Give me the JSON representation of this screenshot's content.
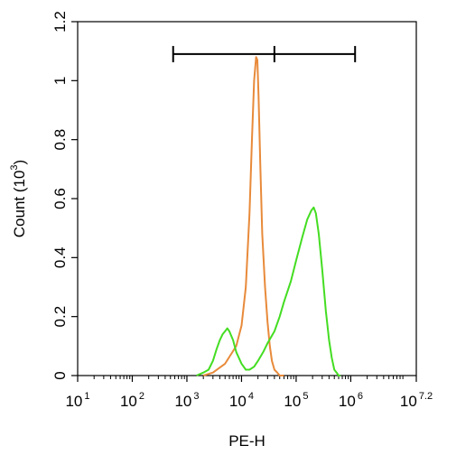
{
  "chart_data": {
    "type": "line",
    "title": "",
    "xlabel": "PE-H",
    "ylabel": "Count",
    "ylabel_unit_base": "10",
    "ylabel_unit_exp": "3",
    "x_scale": "log",
    "xlim": [
      10,
      15848931.92
    ],
    "ylim": [
      0,
      1.2
    ],
    "x_tick_labels": [
      {
        "base": "10",
        "exp": "1"
      },
      {
        "base": "10",
        "exp": "2"
      },
      {
        "base": "10",
        "exp": "3"
      },
      {
        "base": "10",
        "exp": "4"
      },
      {
        "base": "10",
        "exp": "5"
      },
      {
        "base": "10",
        "exp": "6"
      },
      {
        "base": "10",
        "exp": "7.2"
      }
    ],
    "x_tick_values": [
      10,
      100,
      1000,
      10000,
      100000,
      1000000,
      15848931.92
    ],
    "y_ticks": [
      "0",
      "0.2",
      "0.4",
      "0.6",
      "0.8",
      "1",
      "1.2"
    ],
    "y_tick_values": [
      0,
      0.2,
      0.4,
      0.6,
      0.8,
      1.0,
      1.2
    ],
    "gate": {
      "y": 1.09,
      "x_start": 560,
      "x_mid": 40000,
      "x_end": 1200000
    },
    "series": [
      {
        "color": "#e88a3a",
        "x": [
          2000,
          3000,
          5000,
          8000,
          10000,
          12000,
          14000,
          15500,
          17000,
          18500,
          19500,
          20500,
          22000,
          24000,
          27000,
          30000,
          33000,
          36000,
          40000,
          45000,
          50000,
          60000
        ],
        "y": [
          0,
          0.01,
          0.04,
          0.1,
          0.17,
          0.3,
          0.55,
          0.8,
          1.0,
          1.08,
          1.07,
          0.95,
          0.72,
          0.48,
          0.3,
          0.18,
          0.1,
          0.05,
          0.02,
          0.01,
          0,
          0
        ]
      },
      {
        "color": "#44dd22",
        "x": [
          1500,
          2000,
          2500,
          3000,
          3500,
          4000,
          4500,
          5000,
          5500,
          6000,
          7000,
          8000,
          10000,
          12000,
          14000,
          17000,
          20000,
          25000,
          30000,
          40000,
          50000,
          60000,
          80000,
          100000,
          130000,
          160000,
          190000,
          210000,
          230000,
          260000,
          300000,
          350000,
          400000,
          450000,
          500000,
          550000,
          600000,
          650000
        ],
        "y": [
          0,
          0.01,
          0.02,
          0.05,
          0.09,
          0.12,
          0.14,
          0.15,
          0.16,
          0.15,
          0.12,
          0.08,
          0.04,
          0.02,
          0.02,
          0.03,
          0.05,
          0.08,
          0.11,
          0.15,
          0.2,
          0.25,
          0.32,
          0.39,
          0.47,
          0.53,
          0.56,
          0.57,
          0.55,
          0.48,
          0.36,
          0.22,
          0.12,
          0.06,
          0.02,
          0.01,
          0,
          0
        ]
      }
    ]
  }
}
